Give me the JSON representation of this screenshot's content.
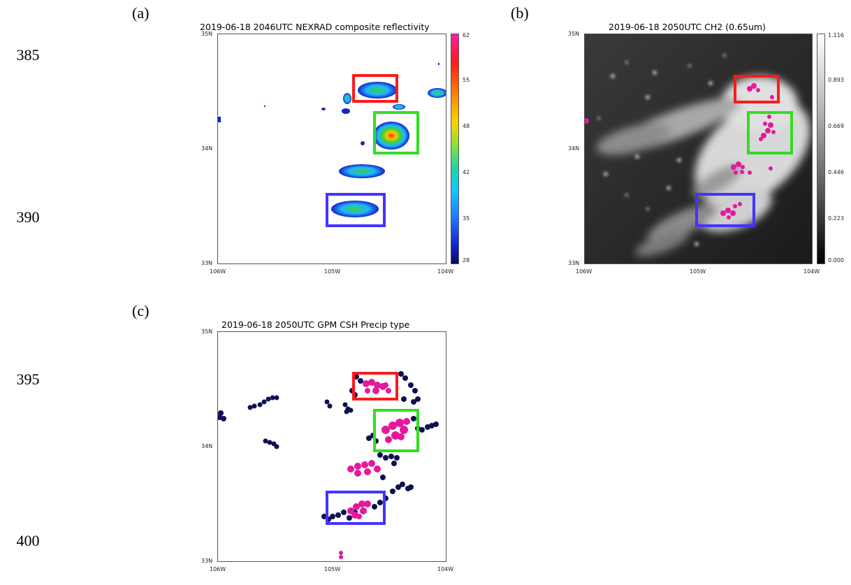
{
  "line_numbers": [
    "385",
    "390",
    "395",
    "400"
  ],
  "panels": {
    "a": {
      "label": "(a)",
      "title": "2019-06-18 2046UTC NEXRAD composite reflectivity",
      "x_ticks": [
        "106W",
        "105W",
        "104W"
      ],
      "y_ticks": [
        "35N",
        "34N",
        "33N"
      ],
      "colorbar_ticks": [
        "62",
        "55",
        "48",
        "42",
        "35",
        "28"
      ]
    },
    "b": {
      "label": "(b)",
      "title": "2019-06-18 2050UTC CH2 (0.65um)",
      "x_ticks": [
        "106W",
        "105W",
        "104W"
      ],
      "y_ticks": [
        "35N",
        "34N",
        "33N"
      ],
      "colorbar_ticks": [
        "1.116",
        "0.893",
        "0.669",
        "0.446",
        "0.223",
        "0.000"
      ]
    },
    "c": {
      "label": "(c)",
      "title": "2019-06-18 2050UTC GPM CSH Precip type",
      "x_ticks": [
        "106W",
        "105W",
        "104W"
      ],
      "y_ticks": [
        "35N",
        "34N",
        "33N"
      ]
    }
  },
  "colors": {
    "box_red": "#ff1a1a",
    "box_green": "#33dd22",
    "box_blue": "#4433ff",
    "precip_magenta": "#e4199b",
    "precip_navy": "#0c1050"
  }
}
